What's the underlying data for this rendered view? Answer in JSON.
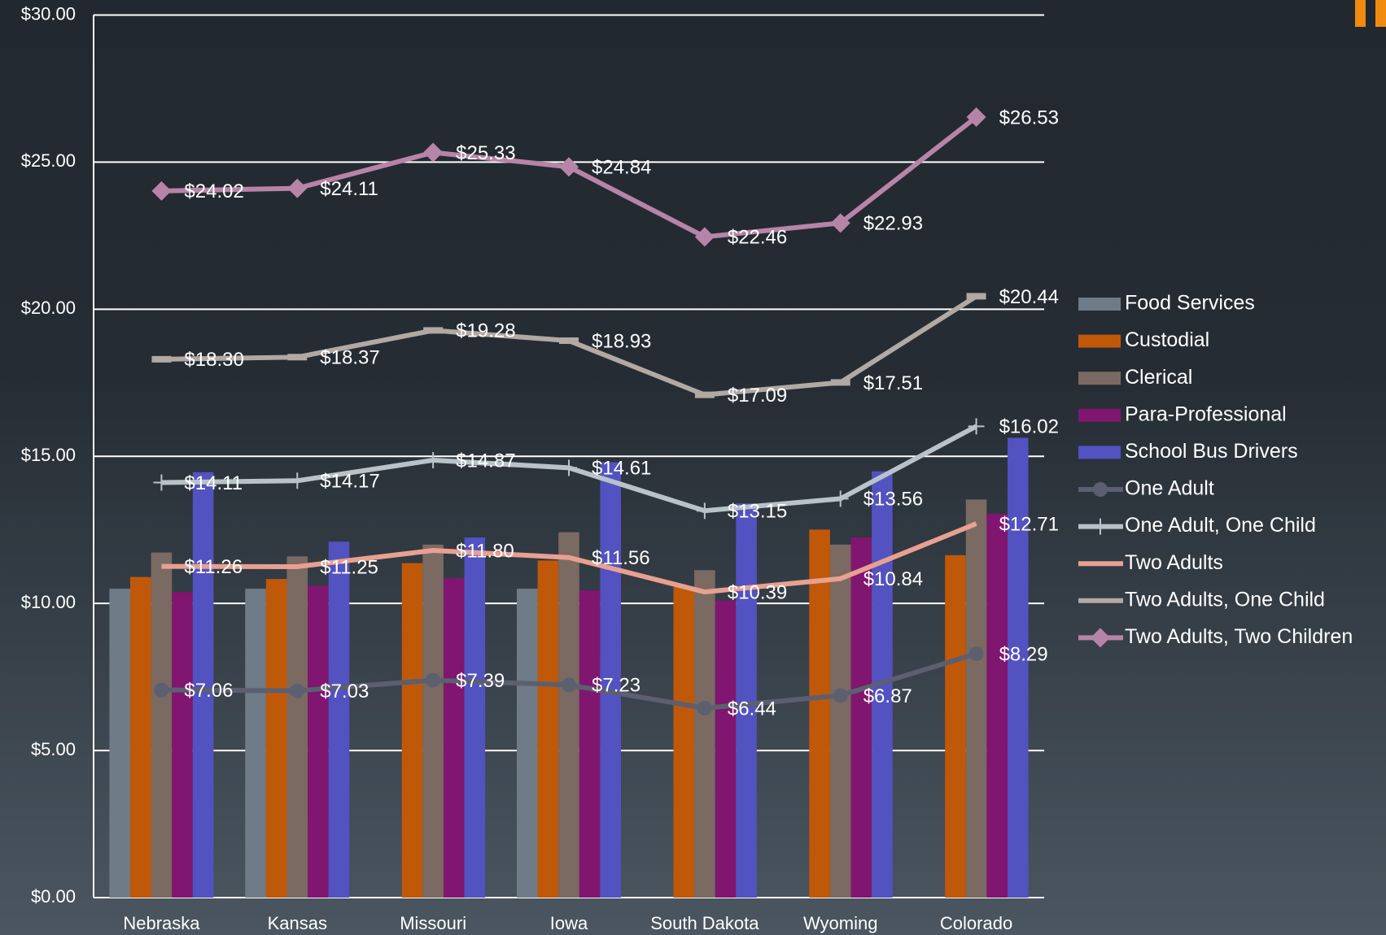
{
  "chart_data": {
    "type": "combo",
    "categories": [
      "Nebraska",
      "Kansas",
      "Missouri",
      "Iowa",
      "South Dakota",
      "Wyoming",
      "Colorado"
    ],
    "ylim": [
      0,
      30
    ],
    "yticks": [
      {
        "value": 0,
        "label": "$0.00"
      },
      {
        "value": 5,
        "label": "$5.00"
      },
      {
        "value": 10,
        "label": "$10.00"
      },
      {
        "value": 15,
        "label": "$15.00"
      },
      {
        "value": 20,
        "label": "$20.00"
      },
      {
        "value": 25,
        "label": "$25.00"
      },
      {
        "value": 30,
        "label": "$30.00"
      }
    ],
    "grid": true,
    "legend": "right",
    "series": [
      {
        "name": "Food Services",
        "kind": "bar",
        "color": "#6f7b86",
        "values": [
          10.5,
          10.5,
          null,
          10.5,
          null,
          null,
          null
        ]
      },
      {
        "name": "Custodial",
        "kind": "bar",
        "color": "#c0580a",
        "values": [
          10.9,
          10.83,
          11.37,
          11.46,
          10.56,
          12.51,
          11.64
        ]
      },
      {
        "name": "Clerical",
        "kind": "bar",
        "color": "#7a6a62",
        "values": [
          11.73,
          11.6,
          12.0,
          12.42,
          11.13,
          12.0,
          13.53
        ]
      },
      {
        "name": "Para-Professional",
        "kind": "bar",
        "color": "#80166f",
        "values": [
          10.38,
          10.6,
          10.86,
          10.44,
          10.1,
          12.24,
          13.05
        ]
      },
      {
        "name": "School Bus Drivers",
        "kind": "bar",
        "color": "#5252c0",
        "values": [
          14.46,
          12.1,
          12.24,
          14.8,
          13.4,
          14.49,
          15.63
        ]
      },
      {
        "name": "One Adult",
        "kind": "line",
        "marker": "circle",
        "color": "#5c5f70",
        "values": [
          7.06,
          7.03,
          7.39,
          7.23,
          6.44,
          6.87,
          8.29
        ],
        "value_labels": [
          "$7.06",
          "$7.03",
          "$7.39",
          "$7.23",
          "$6.44",
          "$6.87",
          "$8.29"
        ]
      },
      {
        "name": "One Adult, One Child",
        "kind": "line",
        "marker": "plus",
        "color": "#b9c1c9",
        "values": [
          14.11,
          14.17,
          14.87,
          14.61,
          13.15,
          13.56,
          16.02
        ],
        "value_labels": [
          "$14.11",
          "$14.17",
          "$14.87",
          "$14.61",
          "$13.15",
          "$13.56",
          "$16.02"
        ]
      },
      {
        "name": "Two Adults",
        "kind": "line",
        "marker": "none",
        "color": "#e8a090",
        "values": [
          11.26,
          11.25,
          11.8,
          11.56,
          10.39,
          10.84,
          12.71
        ],
        "value_labels": [
          "$11.26",
          "$11.25",
          "$11.80",
          "$11.56",
          "$10.39",
          "$10.84",
          "$12.71"
        ]
      },
      {
        "name": "Two Adults, One Child",
        "kind": "line",
        "marker": "dash",
        "color": "#b1a9a2",
        "values": [
          18.3,
          18.37,
          19.28,
          18.93,
          17.09,
          17.51,
          20.44
        ],
        "value_labels": [
          "$18.30",
          "$18.37",
          "$19.28",
          "$18.93",
          "$17.09",
          "$17.51",
          "$20.44"
        ]
      },
      {
        "name": "Two Adults, Two Children",
        "kind": "line",
        "marker": "diamond",
        "color": "#b784a7",
        "values": [
          24.02,
          24.11,
          25.33,
          24.84,
          22.46,
          22.93,
          26.53
        ],
        "value_labels": [
          "$24.02",
          "$24.11",
          "$25.33",
          "$24.84",
          "$22.46",
          "$22.93",
          "$26.53"
        ]
      }
    ]
  }
}
